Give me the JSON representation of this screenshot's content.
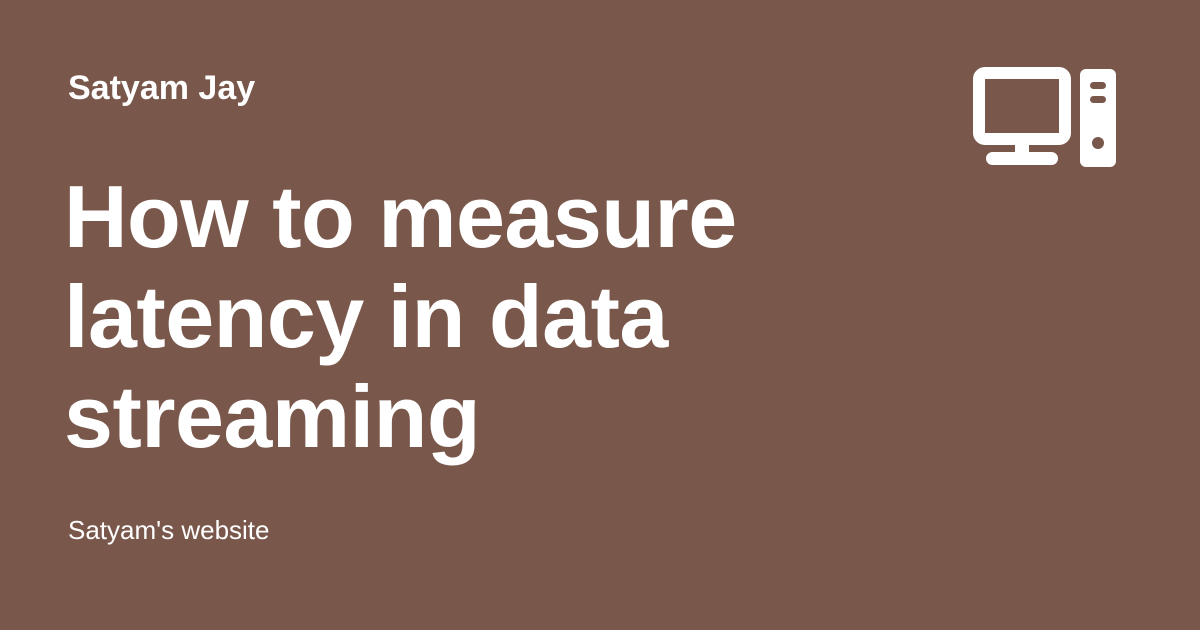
{
  "author": "Satyam Jay",
  "title_lines": [
    "How to measure",
    "latency in data",
    "streaming"
  ],
  "site_name": "Satyam's website",
  "icon": "desktop-computer-icon",
  "colors": {
    "background": "#79574b",
    "text": "#ffffff"
  }
}
